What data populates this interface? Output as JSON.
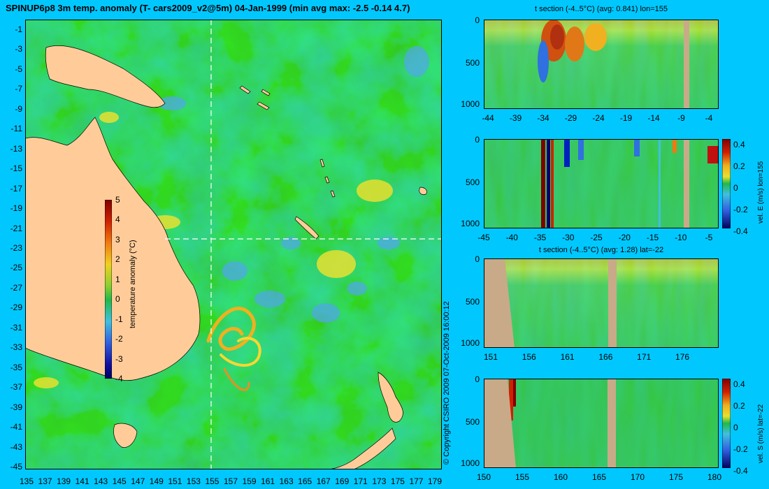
{
  "title": "SPINUP6p8 3m temp. anomaly (T- cars2009_v2@5m) 04-Jan-1999 (min avg max: -2.5 -0.14 4.7)",
  "copyright": "© Copyright CSIRO 2009   07-Oct-2009 16:00:12",
  "colors": {
    "background": "#00c8ff",
    "land": "#ffcc99",
    "section_land": "#c8aa88",
    "ocean_base": "#22b84a",
    "crosshair": "#ffffff"
  },
  "chart_data": [
    {
      "type": "heatmap",
      "id": "map",
      "title": "SPINUP6p8 3m temp. anomaly (T- cars2009_v2@5m) 04-Jan-1999 (min avg max: -2.5 -0.14 4.7)",
      "x_ticks": [
        "135",
        "137",
        "139",
        "141",
        "143",
        "145",
        "147",
        "149",
        "151",
        "153",
        "155",
        "157",
        "159",
        "161",
        "163",
        "165",
        "167",
        "169",
        "171",
        "173",
        "175",
        "177",
        "179"
      ],
      "y_ticks": [
        "-1",
        "-3",
        "-5",
        "-7",
        "-9",
        "-11",
        "-13",
        "-15",
        "-17",
        "-19",
        "-21",
        "-23",
        "-25",
        "-27",
        "-29",
        "-31",
        "-33",
        "-35",
        "-37",
        "-39",
        "-41",
        "-43",
        "-45"
      ],
      "xlim": [
        135,
        180
      ],
      "ylim": [
        -45,
        0
      ],
      "crosshair": {
        "lon": 155,
        "lat": -22
      },
      "colorbar": {
        "label": "temperature anomaly (°C)",
        "ticks": [
          "5",
          "4",
          "3",
          "2",
          "1",
          "0",
          "-1",
          "-2",
          "-3",
          "-4"
        ],
        "range": [
          -4,
          5
        ]
      }
    },
    {
      "type": "heatmap",
      "id": "t-section-lon",
      "title": "t section (-4..5°C) (avg: 0.841) lon=155",
      "x_ticks": [
        "-44",
        "-39",
        "-34",
        "-29",
        "-24",
        "-19",
        "-14",
        "-9",
        "-4"
      ],
      "y_ticks": [
        "0",
        "500",
        "1000"
      ],
      "ylim": [
        0,
        1050
      ]
    },
    {
      "type": "heatmap",
      "id": "vel-e-lon",
      "title": "",
      "x_ticks": [
        "-45",
        "-40",
        "-35",
        "-30",
        "-25",
        "-20",
        "-15",
        "-10",
        "-5"
      ],
      "y_ticks": [
        "0",
        "500",
        "1000"
      ],
      "ylim": [
        0,
        1050
      ],
      "colorbar": {
        "label": "vel. E (m/s) lon=155",
        "ticks": [
          "0.4",
          "0.2",
          "0",
          "-0.2",
          "-0.4"
        ],
        "range": [
          -0.4,
          0.4
        ]
      }
    },
    {
      "type": "heatmap",
      "id": "t-section-lat",
      "title": "t section (-4..5°C) (avg: 1.28) lat=-22",
      "x_ticks": [
        "151",
        "156",
        "161",
        "166",
        "171",
        "176"
      ],
      "y_ticks": [
        "0",
        "500",
        "1000"
      ],
      "ylim": [
        0,
        1050
      ]
    },
    {
      "type": "heatmap",
      "id": "vel-s-lat",
      "title": "",
      "x_ticks": [
        "150",
        "155",
        "160",
        "165",
        "170",
        "175",
        "180"
      ],
      "y_ticks": [
        "0",
        "500",
        "1000"
      ],
      "ylim": [
        0,
        1050
      ],
      "colorbar": {
        "label": "vel. S (m/s) lat=-22",
        "ticks": [
          "0.4",
          "0.2",
          "0",
          "-0.2",
          "-0.4"
        ],
        "range": [
          -0.4,
          0.4
        ]
      }
    }
  ]
}
